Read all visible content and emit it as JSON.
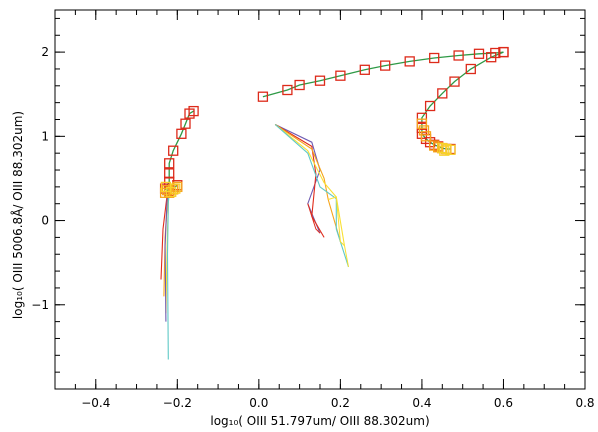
{
  "chart_data": {
    "type": "line",
    "xlabel": "log₁₀( OIII 51.797um/ OIII 88.302um)",
    "ylabel": "log₁₀( OIII 5006.8Å/ OIII 88.302um)",
    "xlim": [
      -0.5,
      0.8
    ],
    "ylim": [
      -2.0,
      2.5
    ],
    "x_ticks": [
      {
        "value": -0.4,
        "label": "−0.4"
      },
      {
        "value": -0.2,
        "label": "−0.2"
      },
      {
        "value": 0.0,
        "label": "0.0"
      },
      {
        "value": 0.2,
        "label": "0.2"
      },
      {
        "value": 0.4,
        "label": "0.4"
      },
      {
        "value": 0.6,
        "label": "0.6"
      },
      {
        "value": 0.8,
        "label": "0.8"
      }
    ],
    "y_ticks": [
      {
        "value": -1,
        "label": "−1"
      },
      {
        "value": 0,
        "label": "0"
      },
      {
        "value": 1,
        "label": "1"
      },
      {
        "value": 2,
        "label": "2"
      }
    ],
    "colors": {
      "marker_red": "#dd2a1a",
      "marker_orange": "#f29c1a",
      "marker_yellow": "#f7d12a",
      "line_green": "#2e9a46",
      "line_red": "#e02c1c",
      "line_orange": "#f6a51c",
      "line_yellow": "#f9e033",
      "line_blue": "#6e5bb2",
      "line_cyan": "#5ec9c6"
    },
    "series": [
      {
        "kind": "marked-line",
        "line_color": "#2e9a46",
        "points": [
          [
            0.01,
            1.47
          ],
          [
            0.07,
            1.55
          ],
          [
            0.1,
            1.61
          ],
          [
            0.15,
            1.66
          ],
          [
            0.2,
            1.72
          ],
          [
            0.26,
            1.79
          ],
          [
            0.31,
            1.84
          ],
          [
            0.37,
            1.89
          ],
          [
            0.43,
            1.93
          ],
          [
            0.49,
            1.96
          ],
          [
            0.54,
            1.98
          ],
          [
            0.58,
            1.99
          ],
          [
            0.6,
            2.0
          ]
        ]
      },
      {
        "kind": "marked-line",
        "line_color": "#2e9a46",
        "points": [
          [
            0.6,
            2.0
          ],
          [
            0.57,
            1.94
          ],
          [
            0.52,
            1.8
          ],
          [
            0.48,
            1.65
          ],
          [
            0.45,
            1.51
          ],
          [
            0.42,
            1.36
          ],
          [
            0.4,
            1.22
          ],
          [
            0.4,
            1.1
          ],
          [
            0.4,
            1.03
          ],
          [
            0.41,
            0.97
          ],
          [
            0.42,
            0.93
          ],
          [
            0.43,
            0.9
          ],
          [
            0.44,
            0.88
          ],
          [
            0.45,
            0.86
          ],
          [
            0.46,
            0.85
          ],
          [
            0.47,
            0.85
          ]
        ]
      },
      {
        "kind": "marked-line",
        "line_color": "#2e9a46",
        "points": [
          [
            -0.16,
            1.3
          ],
          [
            -0.17,
            1.27
          ],
          [
            -0.18,
            1.15
          ],
          [
            -0.19,
            1.03
          ],
          [
            -0.21,
            0.83
          ],
          [
            -0.22,
            0.68
          ],
          [
            -0.22,
            0.56
          ],
          [
            -0.22,
            0.46
          ],
          [
            -0.23,
            0.38
          ],
          [
            -0.22,
            0.35
          ],
          [
            -0.21,
            0.38
          ],
          [
            -0.2,
            0.42
          ]
        ]
      },
      {
        "kind": "fan",
        "origin": [
          -0.22,
          0.37
        ],
        "rays": [
          {
            "color": "#e02c1c",
            "points": [
              [
                -0.225,
                0.3
              ],
              [
                -0.235,
                -0.1
              ],
              [
                -0.24,
                -0.7
              ]
            ]
          },
          {
            "color": "#f6a51c",
            "points": [
              [
                -0.224,
                0.25
              ],
              [
                -0.23,
                -0.2
              ],
              [
                -0.233,
                -0.9
              ]
            ]
          },
          {
            "color": "#f9e033",
            "points": [
              [
                -0.222,
                0.2
              ],
              [
                -0.225,
                -0.3
              ],
              [
                -0.228,
                -1.1
              ]
            ]
          },
          {
            "color": "#6e5bb2",
            "points": [
              [
                -0.225,
                0.25
              ],
              [
                -0.23,
                -0.3
              ],
              [
                -0.228,
                -1.2
              ]
            ]
          },
          {
            "color": "#5ec9c6",
            "points": [
              [
                -0.222,
                0.2
              ],
              [
                -0.224,
                -0.4
              ],
              [
                -0.222,
                -1.65
              ]
            ]
          }
        ]
      },
      {
        "kind": "fan",
        "origin": [
          0.04,
          1.14
        ],
        "rays": [
          {
            "color": "#6e5bb2",
            "points": [
              [
                0.13,
                0.93
              ],
              [
                0.15,
                0.6
              ],
              [
                0.12,
                0.2
              ],
              [
                0.15,
                -0.15
              ]
            ]
          },
          {
            "color": "#e02c1c",
            "points": [
              [
                0.13,
                0.88
              ],
              [
                0.14,
                0.55
              ],
              [
                0.13,
                0.05
              ],
              [
                0.16,
                -0.2
              ]
            ]
          },
          {
            "color": "#f6a51c",
            "points": [
              [
                0.13,
                0.85
              ],
              [
                0.16,
                0.5
              ],
              [
                0.17,
                0.25
              ],
              [
                0.2,
                -0.25
              ]
            ]
          },
          {
            "color": "#f9e033",
            "points": [
              [
                0.12,
                0.83
              ],
              [
                0.16,
                0.45
              ],
              [
                0.19,
                0.28
              ],
              [
                0.21,
                -0.3
              ]
            ]
          },
          {
            "color": "#5ec9c6",
            "points": [
              [
                0.12,
                0.8
              ],
              [
                0.15,
                0.4
              ],
              [
                0.19,
                0.26
              ],
              [
                0.19,
                -0.1
              ],
              [
                0.22,
                -0.55
              ]
            ]
          }
        ]
      },
      {
        "kind": "fan-web",
        "color": "#e02c1c",
        "points": [
          [
            0.12,
            0.2
          ],
          [
            0.13,
            0.05
          ],
          [
            0.14,
            -0.1
          ],
          [
            0.15,
            -0.15
          ]
        ]
      },
      {
        "kind": "fan-web",
        "color": "#f9e033",
        "points": [
          [
            0.17,
            0.25
          ],
          [
            0.19,
            0.28
          ],
          [
            0.2,
            -0.25
          ],
          [
            0.21,
            -0.3
          ],
          [
            0.22,
            -0.55
          ]
        ]
      }
    ],
    "blob_markers": [
      {
        "color": "#f6a51c",
        "points": [
          [
            -0.225,
            0.36
          ],
          [
            -0.22,
            0.33
          ],
          [
            -0.21,
            0.37
          ],
          [
            -0.2,
            0.4
          ],
          [
            -0.23,
            0.33
          ]
        ]
      },
      {
        "color": "#f7d12a",
        "points": [
          [
            -0.215,
            0.34
          ],
          [
            -0.205,
            0.38
          ],
          [
            -0.228,
            0.4
          ]
        ]
      },
      {
        "color": "#f6a51c",
        "points": [
          [
            0.4,
            1.15
          ],
          [
            0.405,
            1.07
          ],
          [
            0.41,
            1.0
          ],
          [
            0.43,
            0.89
          ],
          [
            0.44,
            0.87
          ]
        ]
      },
      {
        "color": "#f7d12a",
        "points": [
          [
            0.45,
            0.86
          ],
          [
            0.46,
            0.85
          ],
          [
            0.47,
            0.84
          ],
          [
            0.455,
            0.83
          ]
        ]
      }
    ]
  }
}
